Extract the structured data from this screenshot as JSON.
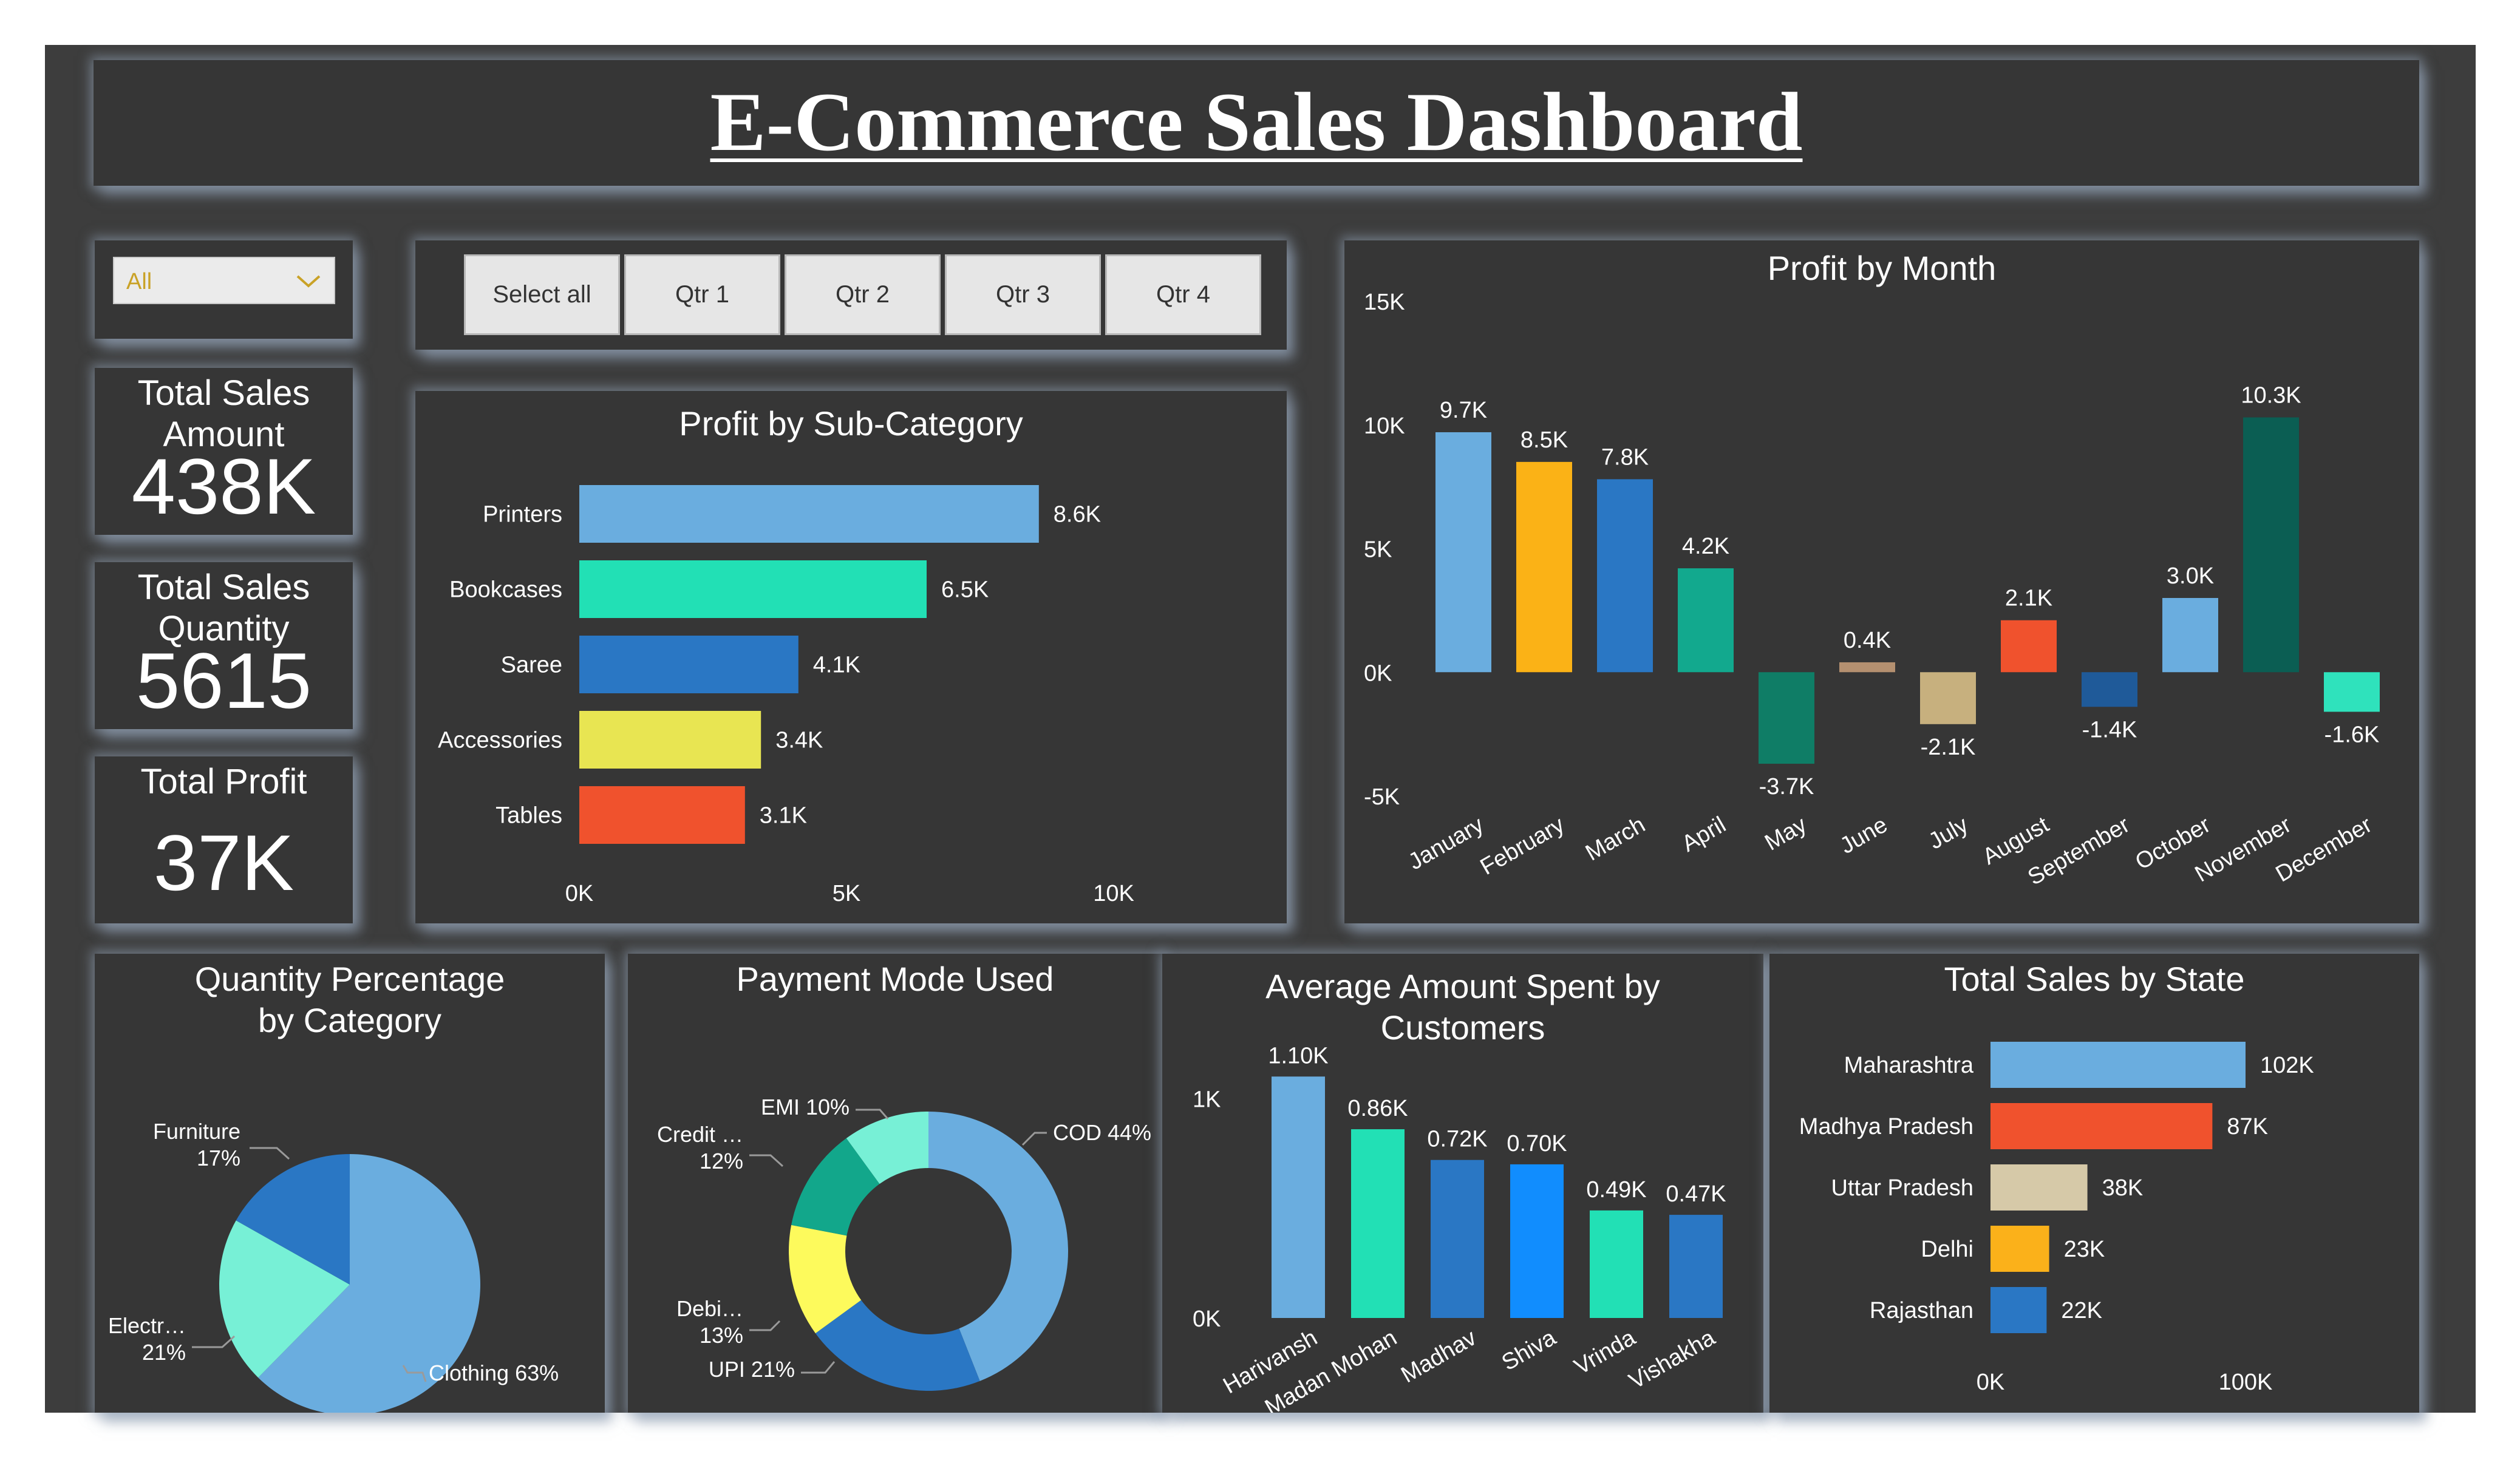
{
  "header": {
    "title": "E-Commerce Sales Dashboard"
  },
  "filters": {
    "dropdown_value": "All",
    "quarter_buttons": [
      "Select all",
      "Qtr 1",
      "Qtr 2",
      "Qtr 3",
      "Qtr 4"
    ]
  },
  "kpis": {
    "sales_amount": {
      "label": "Total Sales Amount",
      "value": "438K"
    },
    "sales_quantity": {
      "label": "Total Sales Quantity",
      "value": "5615"
    },
    "profit": {
      "label": "Total Profit",
      "value": "37K"
    }
  },
  "colors": {
    "light_blue": "#6aaddf",
    "teal": "#22e0b5",
    "blue": "#2a77c4",
    "yellow": "#e8e552",
    "orange_red": "#f0522d",
    "gold": "#fbb216",
    "sea": "#12a98e",
    "dark_teal": "#0f7d66",
    "tan": "#b49070",
    "khaki": "#c7b07e",
    "navy": "#1f5a99",
    "deep_teal": "#0b5e53",
    "mint": "#2fe2bc",
    "bright_blue": "#118dfe",
    "beige": "#d6c9a8",
    "amber": "#fbb11a",
    "pale_teal": "#77f0d6",
    "emi_teal": "#12a78b",
    "yellow_light": "#fdfa5c"
  },
  "chart_data": [
    {
      "id": "sub_category",
      "type": "bar",
      "orientation": "horizontal",
      "title": "Profit by Sub-Category",
      "categories": [
        "Printers",
        "Bookcases",
        "Saree",
        "Accessories",
        "Tables"
      ],
      "values": [
        8600,
        6500,
        4100,
        3400,
        3100
      ],
      "labels": [
        "8.6K",
        "6.5K",
        "4.1K",
        "3.4K",
        "3.1K"
      ],
      "colors": [
        "#6aaddf",
        "#22e0b5",
        "#2a77c4",
        "#e8e552",
        "#f0522d"
      ],
      "xlim": [
        0,
        10000
      ],
      "xticks": [
        "0K",
        "5K",
        "10K"
      ]
    },
    {
      "id": "month",
      "type": "bar",
      "title": "Profit by Month",
      "categories": [
        "January",
        "February",
        "March",
        "April",
        "May",
        "June",
        "July",
        "August",
        "September",
        "October",
        "November",
        "December"
      ],
      "values": [
        9700,
        8500,
        7800,
        4200,
        -3700,
        400,
        -2100,
        2100,
        -1400,
        3000,
        10300,
        -1600
      ],
      "labels": [
        "9.7K",
        "8.5K",
        "7.8K",
        "4.2K",
        "-3.7K",
        "0.4K",
        "-2.1K",
        "2.1K",
        "-1.4K",
        "3.0K",
        "10.3K",
        "-1.6K"
      ],
      "colors": [
        "#6aaddf",
        "#fbb216",
        "#2a77c4",
        "#12a98e",
        "#0f7d66",
        "#b49070",
        "#c7b07e",
        "#f0522d",
        "#1f5a99",
        "#6aaddf",
        "#0b5e53",
        "#2fe2bc"
      ],
      "ylim": [
        -5000,
        15000
      ],
      "yticks": [
        "15K",
        "10K",
        "5K",
        "0K",
        "-5K"
      ]
    },
    {
      "id": "category_qty",
      "type": "pie",
      "title": "Quantity Percentage by Category",
      "slices": [
        {
          "name": "Clothing",
          "value": 63,
          "label": "Clothing 63%",
          "color": "#6aaddf"
        },
        {
          "name": "Electronics",
          "value": 21,
          "label": "Electr… 21%",
          "color": "#77f0d6"
        },
        {
          "name": "Furniture",
          "value": 17,
          "label": "Furniture 17%",
          "color": "#2a77c4"
        }
      ]
    },
    {
      "id": "payment",
      "type": "pie",
      "donut": true,
      "title": "Payment Mode Used",
      "slices": [
        {
          "name": "COD",
          "value": 44,
          "label": "COD 44%",
          "color": "#6aaddf"
        },
        {
          "name": "UPI",
          "value": 21,
          "label": "UPI 21%",
          "color": "#2a77c4"
        },
        {
          "name": "Debit Card",
          "value": 13,
          "label": "Debi… 13%",
          "color": "#fdfa5c"
        },
        {
          "name": "Credit Card",
          "value": 12,
          "label": "Credit … 12%",
          "color": "#12a78b"
        },
        {
          "name": "EMI",
          "value": 10,
          "label": "EMI 10%",
          "color": "#77f0d6"
        }
      ]
    },
    {
      "id": "customers",
      "type": "bar",
      "title": "Average Amount Spent by Customers",
      "categories": [
        "Harivansh",
        "Madan Mohan",
        "Madhav",
        "Shiva",
        "Vrinda",
        "Vishakha"
      ],
      "values": [
        1100,
        860,
        720,
        700,
        490,
        470
      ],
      "labels": [
        "1.10K",
        "0.86K",
        "0.72K",
        "0.70K",
        "0.49K",
        "0.47K"
      ],
      "colors": [
        "#6aaddf",
        "#22e0b5",
        "#2a77c4",
        "#118dfe",
        "#22e0b5",
        "#2a77c4"
      ],
      "ylim": [
        0,
        1300
      ],
      "yticks": [
        "1K",
        "0K"
      ]
    },
    {
      "id": "state",
      "type": "bar",
      "orientation": "horizontal",
      "title": "Total Sales by State",
      "categories": [
        "Maharashtra",
        "Madhya Pradesh",
        "Uttar Pradesh",
        "Delhi",
        "Rajasthan"
      ],
      "values": [
        102000,
        87000,
        38000,
        23000,
        22000
      ],
      "labels": [
        "102K",
        "87K",
        "38K",
        "23K",
        "22K"
      ],
      "colors": [
        "#6aaddf",
        "#f0522d",
        "#d6c9a8",
        "#fbb11a",
        "#2a77c4"
      ],
      "xlim": [
        0,
        100000
      ],
      "xticks": [
        "0K",
        "100K"
      ]
    }
  ]
}
